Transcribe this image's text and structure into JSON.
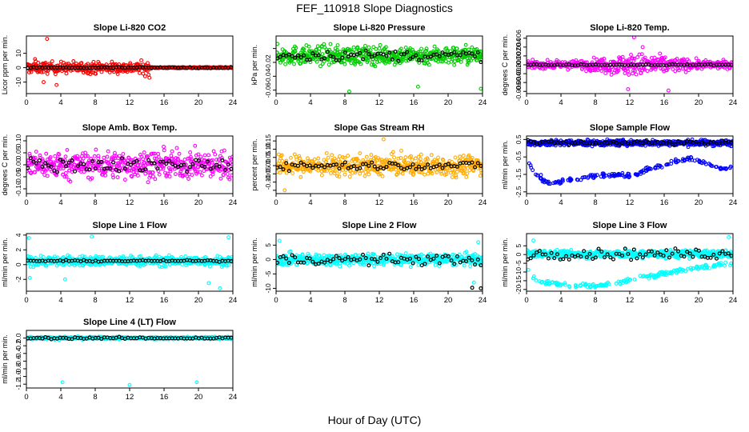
{
  "figure": {
    "title": "FEF_110918  Slope Diagnostics",
    "xlabel": "Hour of Day (UTC)"
  },
  "chart_data": [
    {
      "id": "co2",
      "type": "scatter",
      "title": "Slope Li-820 CO2",
      "ylabel": "Licor ppm per min.",
      "color": "#ff0000",
      "xlim": [
        0,
        24
      ],
      "ylim": [
        -18,
        22
      ],
      "xticks": [
        0,
        4,
        8,
        12,
        16,
        20,
        24
      ],
      "yticks": [
        -10,
        0,
        10
      ],
      "ytick_labels": [
        "-10",
        "0",
        "10"
      ],
      "pattern": {
        "spread": 3.5,
        "spread_end_hour": 14.5,
        "tail_spread": 0.4,
        "black_spread": 0.3
      },
      "outliers": [
        {
          "x": 2.4,
          "y": 20
        },
        {
          "x": 2.0,
          "y": -10
        },
        {
          "x": 3.5,
          "y": -12
        },
        {
          "x": 13.8,
          "y": -6
        },
        {
          "x": 1.0,
          "y": 6
        },
        {
          "x": 14.3,
          "y": -7
        }
      ]
    },
    {
      "id": "pressure",
      "type": "scatter",
      "title": "Slope Li-820 Pressure",
      "ylabel": "kPa per min.",
      "color": "#00cc00",
      "xlim": [
        0,
        24
      ],
      "ylim": [
        -0.065,
        0.018
      ],
      "xticks": [
        0,
        4,
        8,
        12,
        16,
        20,
        24
      ],
      "yticks": [
        -0.06,
        -0.04,
        -0.02,
        0.0
      ],
      "ytick_labels": [
        "-0.06",
        "-0.04",
        "-0.02",
        ""
      ],
      "pattern": {
        "center": -0.01,
        "spread": 0.012,
        "black_spread": 0.006
      },
      "outliers": [
        {
          "x": 8.5,
          "y": -0.062
        },
        {
          "x": 16.5,
          "y": -0.055
        },
        {
          "x": 23.8,
          "y": -0.058
        }
      ]
    },
    {
      "id": "temp",
      "type": "scatter",
      "title": "Slope Li-820 Temp.",
      "ylabel": "degrees C per min.",
      "color": "#ff00ff",
      "xlim": [
        0,
        24
      ],
      "ylim": [
        -0.0065,
        0.0065
      ],
      "xticks": [
        0,
        4,
        8,
        12,
        16,
        20,
        24
      ],
      "yticks": [
        -0.006,
        -0.004,
        -0.002,
        0.0,
        0.002,
        0.004,
        0.006
      ],
      "ytick_labels": [
        "-0.006",
        "-0.004",
        "-0.002",
        "0.000",
        "0.002",
        "0.004",
        "0.006"
      ],
      "pattern": {
        "spread": 0.0007,
        "bulge_center": 13,
        "bulge_width": 5,
        "bulge_spread": 0.0022,
        "black_spread": 0.0001
      },
      "outliers": [
        {
          "x": 12.5,
          "y": 0.0062
        },
        {
          "x": 11.8,
          "y": -0.0055
        },
        {
          "x": 16.5,
          "y": -0.0058
        },
        {
          "x": 13.5,
          "y": 0.004
        }
      ]
    },
    {
      "id": "boxtemp",
      "type": "scatter",
      "title": "Slope Amb. Box Temp.",
      "ylabel": "degrees C per min.",
      "color": "#ff00ff",
      "xlim": [
        0,
        24
      ],
      "ylim": [
        -0.12,
        0.12
      ],
      "xticks": [
        0,
        4,
        8,
        12,
        16,
        20,
        24
      ],
      "yticks": [
        -0.1,
        -0.05,
        0.0,
        0.05,
        0.1
      ],
      "ytick_labels": [
        "-0.10",
        "-0.05",
        "0.00",
        "0.05",
        "0.10"
      ],
      "pattern": {
        "spread": 0.05,
        "black_spread": 0.025
      },
      "outliers": []
    },
    {
      "id": "rh",
      "type": "scatter",
      "title": "Slope Gas Stream RH",
      "ylabel": "percent per min.",
      "color": "#ffaa00",
      "xlim": [
        0,
        24
      ],
      "ylim": [
        -0.17,
        0.18
      ],
      "xticks": [
        0,
        4,
        8,
        12,
        16,
        20,
        24
      ],
      "yticks": [
        -0.15,
        -0.1,
        -0.05,
        0.0,
        0.05,
        0.1,
        0.15
      ],
      "ytick_labels": [
        "",
        "-0.10",
        "-0.05",
        "0.00",
        "0.05",
        "0.10",
        "0.15"
      ],
      "pattern": {
        "spread": 0.055,
        "black_spread": 0.02
      },
      "outliers": [
        {
          "x": 1.0,
          "y": -0.15
        },
        {
          "x": 12.5,
          "y": 0.16
        }
      ]
    },
    {
      "id": "sample",
      "type": "scatter",
      "title": "Slope Sample Flow",
      "ylabel": "ml/min per min.",
      "color": "#0000ff",
      "xlim": [
        0,
        24
      ],
      "ylim": [
        -2.6,
        0.7
      ],
      "xticks": [
        0,
        4,
        8,
        12,
        16,
        20,
        24
      ],
      "yticks": [
        -2.5,
        -1.5,
        -0.5,
        0.5
      ],
      "ytick_labels": [
        "-2.5",
        "-1.5",
        "-0.5",
        "0.5"
      ],
      "pattern": {
        "center": 0.3,
        "spread": 0.15,
        "black_spread": 0.1
      },
      "low_band": [
        [
          0.3,
          -0.8
        ],
        [
          1,
          -1.5
        ],
        [
          2,
          -1.8
        ],
        [
          3,
          -2.0
        ],
        [
          5,
          -1.8
        ],
        [
          8,
          -1.6
        ],
        [
          11,
          -1.5
        ],
        [
          12.5,
          -1.6
        ],
        [
          14,
          -1.2
        ],
        [
          17,
          -0.8
        ],
        [
          19,
          -0.6
        ],
        [
          21,
          -0.9
        ],
        [
          23,
          -1.2
        ],
        [
          24,
          -1.1
        ]
      ],
      "outliers": []
    },
    {
      "id": "line1",
      "type": "scatter",
      "title": "Slope Line 1 Flow",
      "ylabel": "ml/min per min.",
      "color": "#00ffff",
      "xlim": [
        0,
        24
      ],
      "ylim": [
        -3.6,
        4.2
      ],
      "xticks": [
        0,
        4,
        8,
        12,
        16,
        20,
        24
      ],
      "yticks": [
        -2,
        0,
        2,
        4
      ],
      "ytick_labels": [
        "-2",
        "0",
        "2",
        "4"
      ],
      "pattern": {
        "center": 0.5,
        "spread": 0.6,
        "black_spread": 0.08
      },
      "outliers": [
        {
          "x": 0.3,
          "y": 3.6
        },
        {
          "x": 7.6,
          "y": 3.8
        },
        {
          "x": 22.5,
          "y": -3.2
        },
        {
          "x": 23.5,
          "y": 3.7
        },
        {
          "x": 0.4,
          "y": -1.8
        },
        {
          "x": 21.2,
          "y": -2.5
        },
        {
          "x": 4.5,
          "y": -2.0
        }
      ]
    },
    {
      "id": "line2",
      "type": "scatter",
      "title": "Slope Line 2 Flow",
      "ylabel": "ml/min per min.",
      "color": "#00ffff",
      "xlim": [
        0,
        24
      ],
      "ylim": [
        -11,
        9
      ],
      "xticks": [
        0,
        4,
        8,
        12,
        16,
        20,
        24
      ],
      "yticks": [
        -10,
        -5,
        0,
        5
      ],
      "ytick_labels": [
        "-10",
        "-5",
        "0",
        "5"
      ],
      "pattern": {
        "spread": 1.8,
        "black_spread": 1.5
      },
      "outliers": [
        {
          "x": 0.4,
          "y": 6.5
        },
        {
          "x": 23.0,
          "y": -8
        },
        {
          "x": 23.5,
          "y": 6
        }
      ],
      "black_outliers": [
        {
          "x": 22.8,
          "y": -9.8
        },
        {
          "x": 23.8,
          "y": -10
        }
      ]
    },
    {
      "id": "line3",
      "type": "scatter",
      "title": "Slope Line 3 Flow",
      "ylabel": "ml/min per min.",
      "color": "#00ffff",
      "xlim": [
        0,
        24
      ],
      "ylim": [
        -21,
        12
      ],
      "xticks": [
        0,
        4,
        8,
        12,
        16,
        20,
        24
      ],
      "yticks": [
        -20,
        -15,
        -10,
        -5,
        0,
        5
      ],
      "ytick_labels": [
        "-20",
        "-15",
        "-10",
        "-5",
        "0",
        "5"
      ],
      "pattern": {
        "center": 0.3,
        "spread": 2.0,
        "black_spread": 2.5
      },
      "low_band": [
        [
          0.2,
          -8
        ],
        [
          1,
          -14
        ],
        [
          2,
          -16
        ],
        [
          5,
          -18
        ],
        [
          8,
          -18
        ],
        [
          11,
          -16
        ],
        [
          13,
          -13
        ],
        [
          16,
          -11
        ],
        [
          19,
          -8
        ],
        [
          22,
          -6
        ],
        [
          24,
          -5
        ]
      ],
      "outliers": [
        {
          "x": 23.5,
          "y": 10
        },
        {
          "x": 0.8,
          "y": 8
        }
      ]
    },
    {
      "id": "line4",
      "type": "scatter",
      "title": "Slope Line 4 (LT) Flow",
      "ylabel": "ml/min per min.",
      "color": "#00ffff",
      "xlim": [
        0,
        24
      ],
      "ylim": [
        -1.3,
        0.2
      ],
      "xticks": [
        0,
        4,
        8,
        12,
        16,
        20,
        24
      ],
      "yticks": [
        -1.2,
        -1.0,
        -0.8,
        -0.6,
        -0.4,
        -0.2,
        0.0
      ],
      "ytick_labels": [
        "-1.2",
        "-1.0",
        "-0.8",
        "-0.6",
        "-0.4",
        "-0.2",
        "0.0"
      ],
      "pattern": {
        "spread": 0.03,
        "black_spread": 0.02
      },
      "outliers": [
        {
          "x": 4.2,
          "y": -1.15
        },
        {
          "x": 12.0,
          "y": -1.22
        },
        {
          "x": 19.8,
          "y": -1.15
        }
      ]
    }
  ]
}
